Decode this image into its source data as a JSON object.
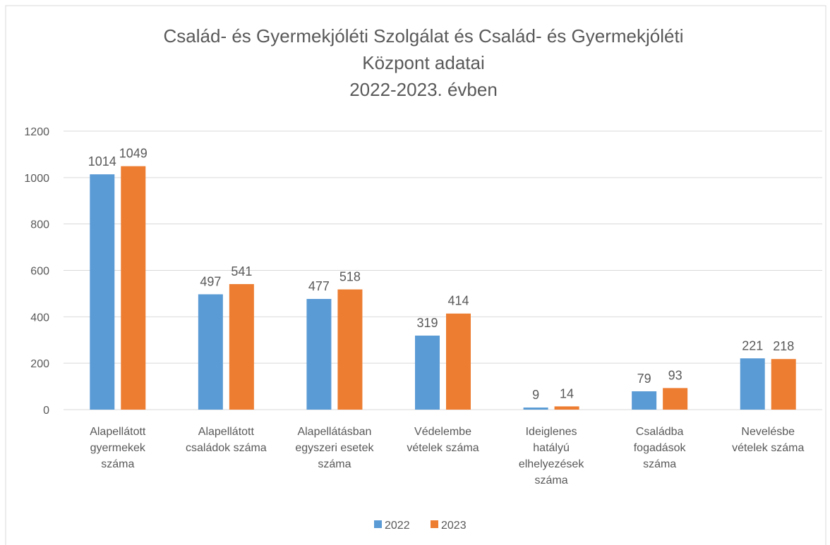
{
  "chart_data": {
    "type": "bar",
    "title": "Család- és Gyermekjóléti Szolgálat és Család- és Gyermekjóléti\nKözpont adatai\n2022-2023. évben",
    "categories": [
      "Alapellátott\ngyermekek\nszáma",
      "Alapellátott\ncsaládok száma",
      "Alapellátásban\negyszeri esetek\nszáma",
      "Védelembe\nvételek száma",
      "Ideiglenes\nhatályú\nelhelyezések\nszáma",
      "Családba\nfogadások\nszáma",
      "Nevelésbe\nvételek száma"
    ],
    "series": [
      {
        "name": "2022",
        "color": "#5b9bd5",
        "values": [
          1014,
          497,
          477,
          319,
          9,
          79,
          221
        ]
      },
      {
        "name": "2023",
        "color": "#ed7d31",
        "values": [
          1049,
          541,
          518,
          414,
          14,
          93,
          218
        ]
      }
    ],
    "ylim": [
      0,
      1200
    ],
    "yticks": [
      0,
      200,
      400,
      600,
      800,
      1000,
      1200
    ],
    "grid": true,
    "legend": "bottom"
  }
}
